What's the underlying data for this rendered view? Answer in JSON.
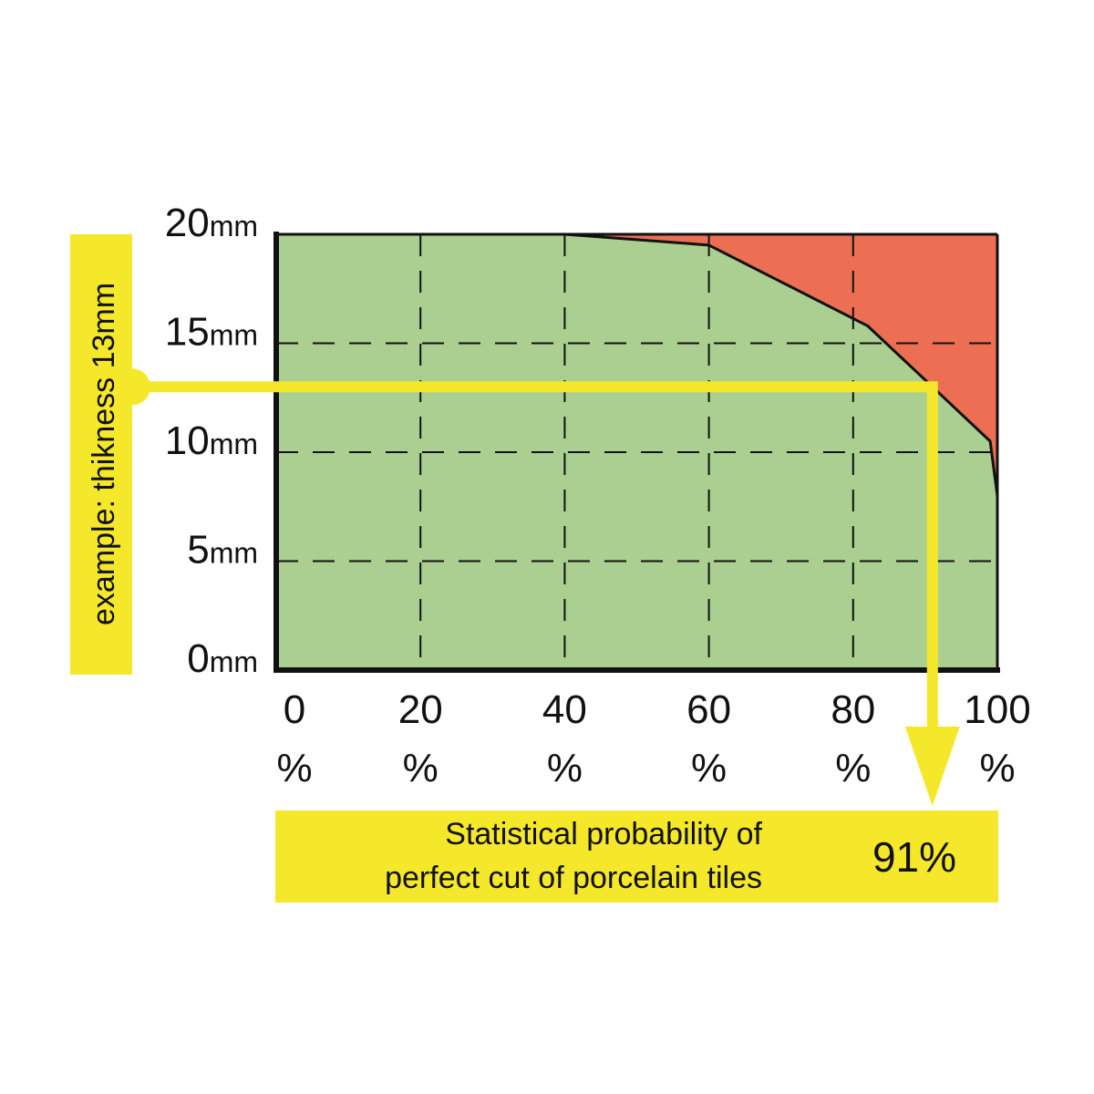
{
  "chart_data": {
    "type": "area",
    "x_tick_values": [
      0,
      20,
      40,
      60,
      80,
      100
    ],
    "x_tick_labels": [
      "0",
      "20",
      "40",
      "60",
      "80",
      "100"
    ],
    "x_tick_unit": "%",
    "y_tick_values": [
      0,
      5,
      10,
      15,
      20
    ],
    "y_tick_labels": [
      "0",
      "5",
      "10",
      "15",
      "20"
    ],
    "y_tick_unit": "mm",
    "xlim": [
      0,
      100
    ],
    "ylim": [
      0,
      20
    ],
    "grid": true,
    "series": [
      {
        "x": [
          0,
          40,
          60,
          82,
          91,
          99,
          100
        ],
        "y": [
          20,
          20,
          19.5,
          15.8,
          13,
          10.5,
          8
        ]
      }
    ],
    "example": {
      "label": "example: thikness 13mm",
      "thickness": 13,
      "result_x": 91
    },
    "result_box": {
      "line1": "Statistical probability of",
      "line2": "perfect cut of porcelain tiles",
      "value": "91%"
    },
    "colors": {
      "good_area": "#aacf90",
      "bad_area": "#ec6f53",
      "highlight": "#f5e82a",
      "axis": "#111111"
    }
  }
}
